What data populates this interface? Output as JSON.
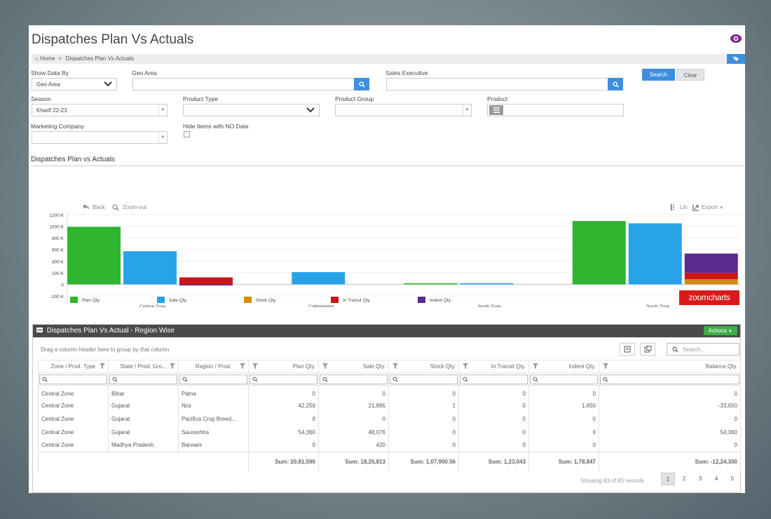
{
  "page": {
    "title": "Dispatches Plan Vs Actuals",
    "breadcrumb": {
      "home": "Home",
      "current": "Dispatches Plan Vs Actuals"
    }
  },
  "filters": {
    "show_data_by": {
      "label": "Show Data By",
      "value": "Geo Area"
    },
    "geo_area": {
      "label": "Geo Area",
      "value": ""
    },
    "sales_executive": {
      "label": "Sales Executive",
      "value": ""
    },
    "search_button": "Search",
    "clear_button": "Clear",
    "season": {
      "label": "Season",
      "value": "Kharif 22-23"
    },
    "product_type": {
      "label": "Product Type",
      "value": ""
    },
    "product_group": {
      "label": "Product Group",
      "value": ""
    },
    "product": {
      "label": "Product",
      "value": ""
    },
    "marketing_company": {
      "label": "Marketing Company",
      "value": ""
    },
    "hide_items": {
      "label": "Hide Items with NO Data",
      "checked": false
    }
  },
  "chart_section": {
    "title": "Dispatches Plan vs Actuals",
    "toolbar": {
      "back": "Back",
      "zoom_out": "Zoom-out",
      "lin": "Lin",
      "export": "Export"
    },
    "logo_text": "zoomcharts"
  },
  "chart_data": {
    "type": "bar",
    "categories": [
      "Central Zone",
      "CoMarketing",
      "North Zone",
      "South Zone"
    ],
    "series": [
      {
        "name": "Plan Qty.",
        "color": "#2fb52f",
        "values": [
          990,
          0,
          20,
          1090
        ]
      },
      {
        "name": "Sale Qty.",
        "color": "#29a3e8",
        "values": [
          570,
          210,
          20,
          1050
        ]
      },
      {
        "name": "Stock Qty.",
        "color": "#d48b0e",
        "values": [
          0,
          0,
          0,
          90
        ]
      },
      {
        "name": "In Transit Qty.",
        "color": "#cc1515",
        "values": [
          120,
          0,
          0,
          110
        ]
      },
      {
        "name": "Indent Qty.",
        "color": "#5c2a91",
        "values": [
          -20,
          0,
          0,
          330
        ]
      }
    ],
    "ylim": [
      -200,
      1200
    ],
    "y_ticks": [
      "1200 K",
      "1000 K",
      "800 K",
      "600 K",
      "400 K",
      "200 K",
      "0",
      "-200 K"
    ],
    "grid": true,
    "legend": "bottom"
  },
  "grid": {
    "title": "Dispatches Plan Vs Actual - Region Wise",
    "actions_button": "Actions",
    "group_hint": "Drag a column header here to group by that column",
    "search_placeholder": "Search...",
    "columns": [
      "Zone / Prod. Type",
      "State / Prod. Gro...",
      "Region / Prod.",
      "Plan Qty.",
      "Sale Qty.",
      "Stock Qty.",
      "In Transit Qty.",
      "Indent Qty.",
      "Balance Qty."
    ],
    "rows": [
      [
        "Central Zone",
        "Bihar",
        "Patna",
        "0",
        "0",
        "0",
        "0",
        "0",
        "0"
      ],
      [
        "Central Zone",
        "Gujarat",
        "Ncs",
        "42,250",
        "21,895",
        "1",
        "0",
        "1,650",
        "-33,650"
      ],
      [
        "Central Zone",
        "Gujarat",
        "Pacifica Crop Breed...",
        "0",
        "0",
        "0",
        "0",
        "0",
        "0"
      ],
      [
        "Central Zone",
        "Gujarat",
        "Saurashtra",
        "54,360",
        "48,076",
        "0",
        "0",
        "0",
        "54,360"
      ],
      [
        "Central Zone",
        "Madhya Pradesh",
        "Barwani",
        "0",
        "420",
        "0",
        "0",
        "0",
        "0"
      ]
    ],
    "sums": [
      "Sum: 20,81,590",
      "Sum: 18,25,813",
      "Sum: 1,07,900.56",
      "Sum: 1,23,043",
      "Sum: 1,78,847",
      "Sum: -12,24,300"
    ],
    "pager_info": "Showing 83 of 83 records",
    "pages": [
      "1",
      "2",
      "3",
      "4",
      "5"
    ]
  }
}
